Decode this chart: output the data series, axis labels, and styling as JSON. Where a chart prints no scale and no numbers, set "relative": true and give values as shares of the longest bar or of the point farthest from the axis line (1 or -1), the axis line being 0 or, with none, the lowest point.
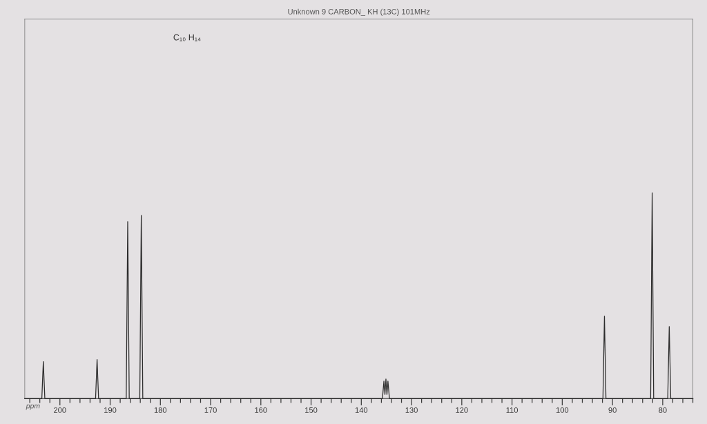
{
  "chart_data": {
    "type": "line",
    "title": "Unknown 9 CARBON_ KH (13C) 101MHz",
    "xlabel": "ppm",
    "annotations": [
      "C₁₀ H₁₄"
    ],
    "relative": true,
    "x": [
      207,
      203.6,
      203.3,
      203.0,
      192.9,
      192.6,
      192.3,
      186.8,
      186.5,
      186.2,
      184.1,
      183.8,
      183.5,
      135.8,
      135.5,
      135.3,
      135.1,
      134.9,
      134.7,
      134.4,
      91.9,
      91.6,
      91.3,
      82.4,
      82.1,
      81.8,
      79.0,
      78.7,
      78.4,
      74
    ],
    "series": [
      {
        "color": "#2b2b2b",
        "values": [
          0,
          0,
          0.18,
          0,
          0,
          0.19,
          0,
          0,
          0.86,
          0,
          0,
          0.89,
          0,
          0,
          0.085,
          0.02,
          0.095,
          0.02,
          0.085,
          0,
          0,
          0.4,
          0,
          0,
          1,
          0,
          0,
          0.35,
          0,
          0
        ]
      }
    ],
    "xlim": [
      207,
      74
    ],
    "xticks": [
      {
        "value": 206,
        "label": null
      },
      {
        "value": 204,
        "label": null
      },
      {
        "value": 202,
        "label": null
      },
      200,
      {
        "value": 198,
        "label": null
      },
      {
        "value": 196,
        "label": null
      },
      {
        "value": 194,
        "label": null
      },
      {
        "value": 192,
        "label": null
      },
      190,
      {
        "value": 188,
        "label": null
      },
      {
        "value": 186,
        "label": null
      },
      {
        "value": 184,
        "label": null
      },
      {
        "value": 182,
        "label": null
      },
      180,
      {
        "value": 178,
        "label": null
      },
      {
        "value": 176,
        "label": null
      },
      {
        "value": 174,
        "label": null
      },
      {
        "value": 172,
        "label": null
      },
      170,
      {
        "value": 168,
        "label": null
      },
      {
        "value": 166,
        "label": null
      },
      {
        "value": 164,
        "label": null
      },
      {
        "value": 162,
        "label": null
      },
      160,
      {
        "value": 158,
        "label": null
      },
      {
        "value": 156,
        "label": null
      },
      {
        "value": 154,
        "label": null
      },
      {
        "value": 152,
        "label": null
      },
      150,
      {
        "value": 148,
        "label": null
      },
      {
        "value": 146,
        "label": null
      },
      {
        "value": 144,
        "label": null
      },
      {
        "value": 142,
        "label": null
      },
      140,
      {
        "value": 138,
        "label": null
      },
      {
        "value": 136,
        "label": null
      },
      {
        "value": 134,
        "label": null
      },
      {
        "value": 132,
        "label": null
      },
      130,
      {
        "value": 128,
        "label": null
      },
      {
        "value": 126,
        "label": null
      },
      {
        "value": 124,
        "label": null
      },
      {
        "value": 122,
        "label": null
      },
      120,
      {
        "value": 118,
        "label": null
      },
      {
        "value": 116,
        "label": null
      },
      {
        "value": 114,
        "label": null
      },
      {
        "value": 112,
        "label": null
      },
      110,
      {
        "value": 108,
        "label": null
      },
      {
        "value": 106,
        "label": null
      },
      {
        "value": 104,
        "label": null
      },
      {
        "value": 102,
        "label": null
      },
      100,
      {
        "value": 98,
        "label": null
      },
      {
        "value": 96,
        "label": null
      },
      {
        "value": 94,
        "label": null
      },
      {
        "value": 92,
        "label": null
      },
      90,
      {
        "value": 88,
        "label": null
      },
      {
        "value": 86,
        "label": null
      },
      {
        "value": 84,
        "label": null
      },
      {
        "value": 82,
        "label": null
      },
      80,
      {
        "value": 78,
        "label": null
      },
      {
        "value": 76,
        "label": null
      },
      {
        "value": 74,
        "label": null
      }
    ],
    "line_style": "solid"
  }
}
